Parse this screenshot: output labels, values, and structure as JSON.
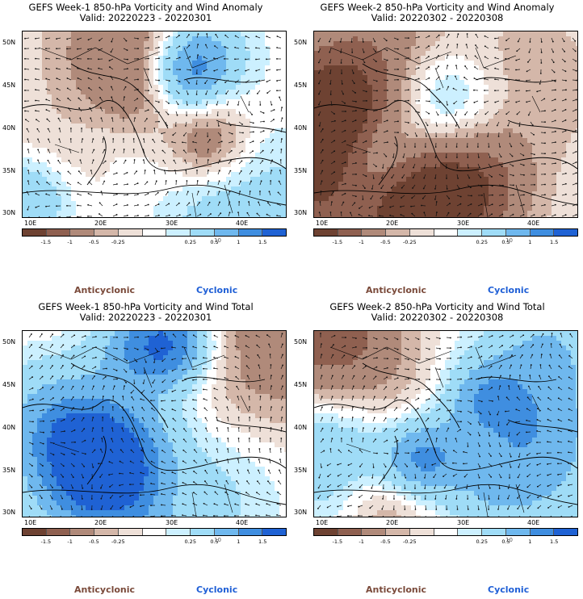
{
  "colors": {
    "anticyclonic": "#7a4a3a",
    "cyclonic": "#1f5fd6",
    "scale": [
      "#6e4232",
      "#8f6050",
      "#b08a7a",
      "#d4b7a9",
      "#eee0d8",
      "#ffffff",
      "#ccf0ff",
      "#9fdcf7",
      "#6fb8ee",
      "#3f8ee0",
      "#1f62d4"
    ]
  },
  "colorbar": {
    "labels": [
      "-1.5",
      "-1",
      "-0.5",
      "-0.25",
      "0.25",
      "0.5",
      "1",
      "1.5"
    ],
    "scale_note": "10"
  },
  "legend": {
    "anticyclonic": "Anticyclonic",
    "cyclonic": "Cyclonic"
  },
  "axes": {
    "lat_labels": [
      "50N",
      "45N",
      "40N",
      "35N",
      "30N"
    ],
    "lon_labels": [
      "10E",
      "20E",
      "30E",
      "40E"
    ]
  },
  "panels": [
    {
      "title": "GEFS Week-1 850-hPa Vorticity and Wind Anomaly",
      "valid": "Valid: 20220223 - 20220301"
    },
    {
      "title": "GEFS Week-2 850-hPa Vorticity and Wind Anomaly",
      "valid": "Valid: 20220302 - 20220308"
    },
    {
      "title": "GEFS Week-1 850-hPa Vorticity and Wind Total",
      "valid": "Valid: 20220223 - 20220301"
    },
    {
      "title": "GEFS Week-2 850-hPa Vorticity and Wind Total",
      "valid": "Valid: 20220302 - 20220308"
    }
  ]
}
